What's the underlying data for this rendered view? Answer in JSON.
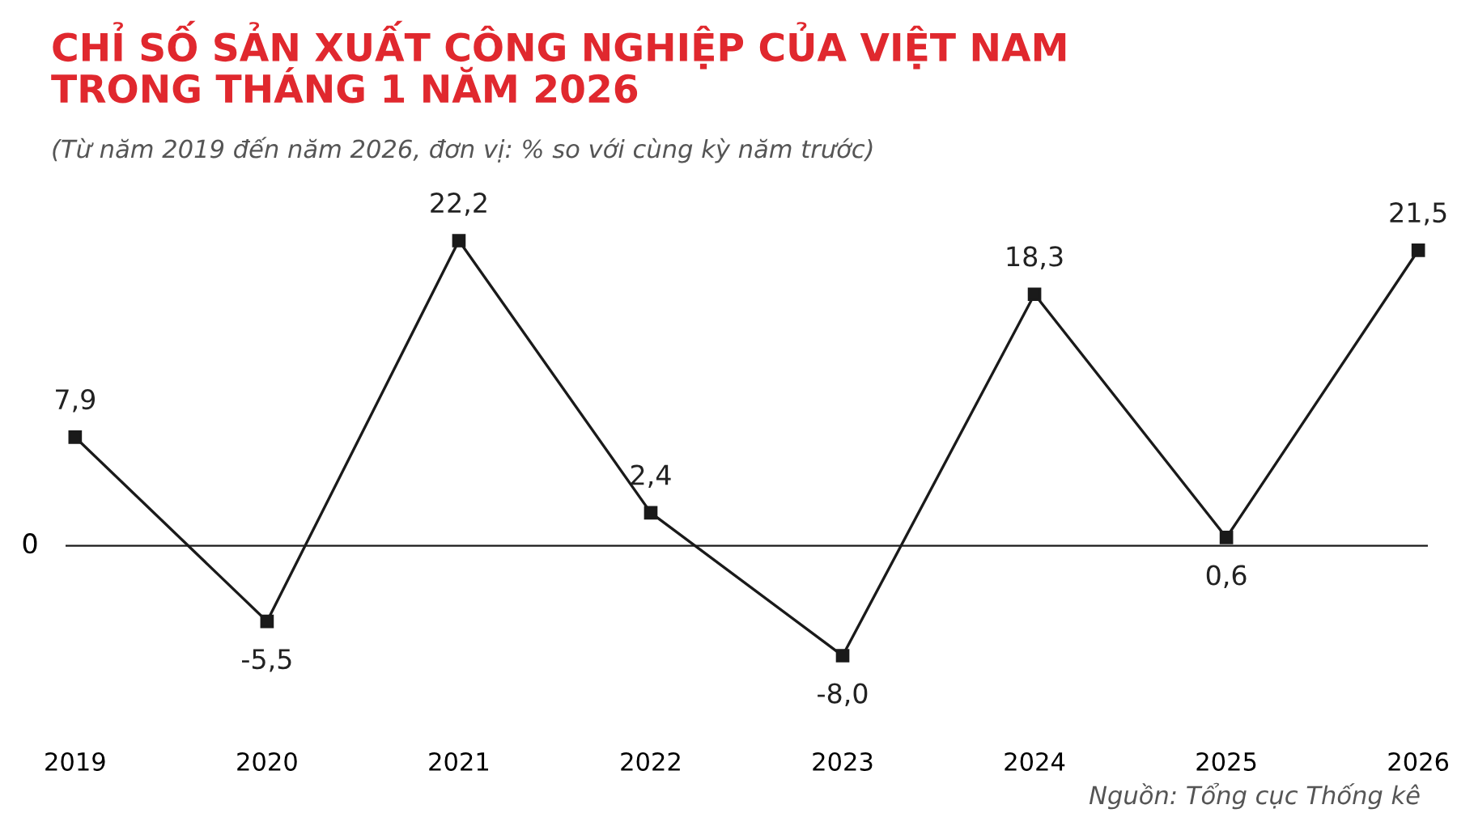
{
  "chart_data": {
    "type": "line",
    "title": "CHỈ SỐ SẢN XUẤT CÔNG NGHIỆP CỦA VIỆT NAM\nTRONG THÁNG 1 NĂM 2026",
    "subtitle": "(Từ năm 2019 đến năm 2026, đơn vị: % so với cùng kỳ năm trước)",
    "categories": [
      "2019",
      "2020",
      "2021",
      "2022",
      "2023",
      "2024",
      "2025",
      "2026"
    ],
    "series": [
      {
        "color": "#1a1a1a",
        "values": [
          7.9,
          -5.5,
          22.2,
          2.4,
          -8.0,
          18.3,
          0.6,
          21.5
        ],
        "value_labels": [
          "7,9",
          "-5,5",
          "22,2",
          "2,4",
          "-8,0",
          "18,3",
          "0,6",
          "21,5"
        ]
      }
    ],
    "ref_lines": [
      {
        "axis": "y",
        "value": 0,
        "label": "0",
        "color": "#1a1a1a"
      }
    ],
    "marker": "square",
    "line_style": "solid",
    "grid": false,
    "tick_labels": "x",
    "annotations": [
      "Nguồn: Tổng cục Thống kê"
    ]
  }
}
